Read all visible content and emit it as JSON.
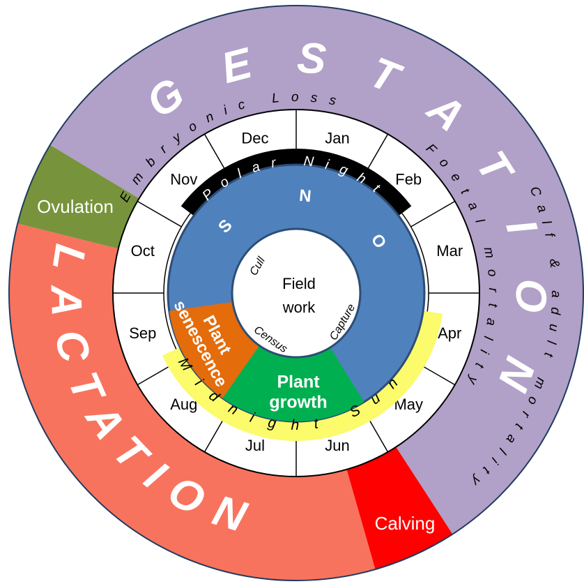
{
  "outer_ring": {
    "gestation": "GESTATION",
    "lactation": "LACTATION",
    "ovulation": "Ovulation",
    "calving": "Calving",
    "embryonic_loss": "Embryonic Loss",
    "foetal_mortality": "Foetal mortality",
    "calf_adult_mortality": "Calf & adult mortality"
  },
  "months": [
    "Jan",
    "Feb",
    "Mar",
    "Apr",
    "May",
    "Jun",
    "Jul",
    "Aug",
    "Sep",
    "Oct",
    "Nov",
    "Dec"
  ],
  "light": {
    "polar_night": "Polar Night",
    "midnight_sun": "Midnight Sun"
  },
  "inner": {
    "snow": "SNOW",
    "plant_senescence": [
      "Plant",
      "senescence"
    ],
    "plant_growth": [
      "Plant",
      "growth"
    ],
    "field_work": [
      "Field",
      "work"
    ],
    "cull": "Cull",
    "census": "Census",
    "capture": "Capture"
  }
}
